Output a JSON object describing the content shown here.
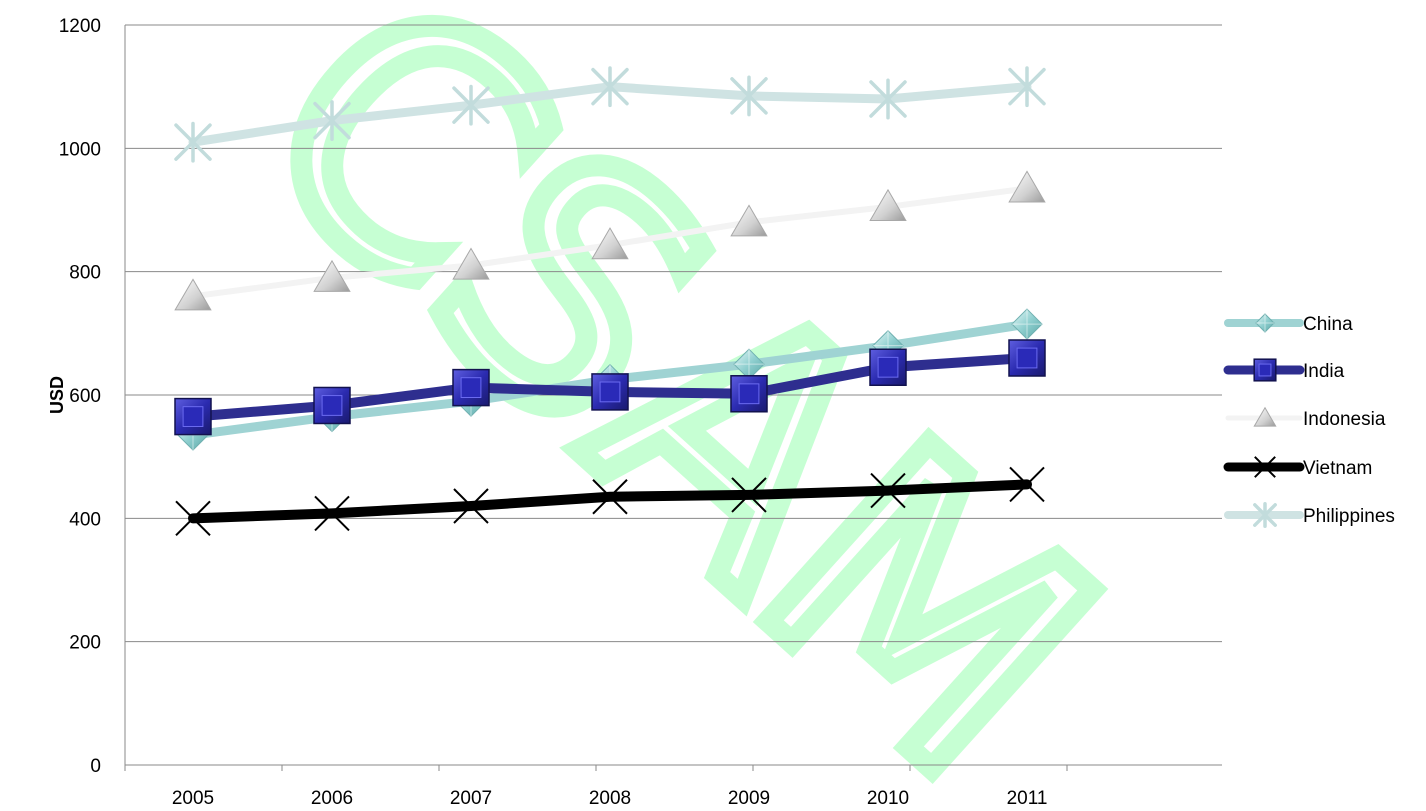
{
  "chart_data": {
    "type": "line",
    "categories": [
      "2005",
      "2006",
      "2007",
      "2008",
      "2009",
      "2010",
      "2011"
    ],
    "ylabel": "USD",
    "xlabel": "",
    "ylim": [
      0,
      1200
    ],
    "yticks": [
      0,
      200,
      400,
      600,
      800,
      1000,
      1200
    ],
    "grid": true,
    "legend_position": "right",
    "series": [
      {
        "name": "China",
        "values": [
          535,
          565,
          590,
          625,
          650,
          680,
          715
        ],
        "color": "#9fd3d3",
        "marker": "diamond-icon"
      },
      {
        "name": "India",
        "values": [
          565,
          583,
          612,
          605,
          602,
          645,
          660
        ],
        "color": "#2e2e8f",
        "marker": "square-icon"
      },
      {
        "name": "Indonesia",
        "values": [
          760,
          790,
          810,
          843,
          880,
          905,
          935
        ],
        "color": "#f3f3f3",
        "marker": "triangle-icon"
      },
      {
        "name": "Vietnam",
        "values": [
          400,
          408,
          420,
          435,
          438,
          445,
          455
        ],
        "color": "#000000",
        "marker": "x-icon"
      },
      {
        "name": "Philippines",
        "values": [
          1010,
          1045,
          1070,
          1100,
          1085,
          1080,
          1100
        ],
        "color": "#cfe3e3",
        "marker": "star-icon"
      }
    ]
  },
  "watermark": {
    "text": "CSAM",
    "color": "#00ff3c"
  }
}
